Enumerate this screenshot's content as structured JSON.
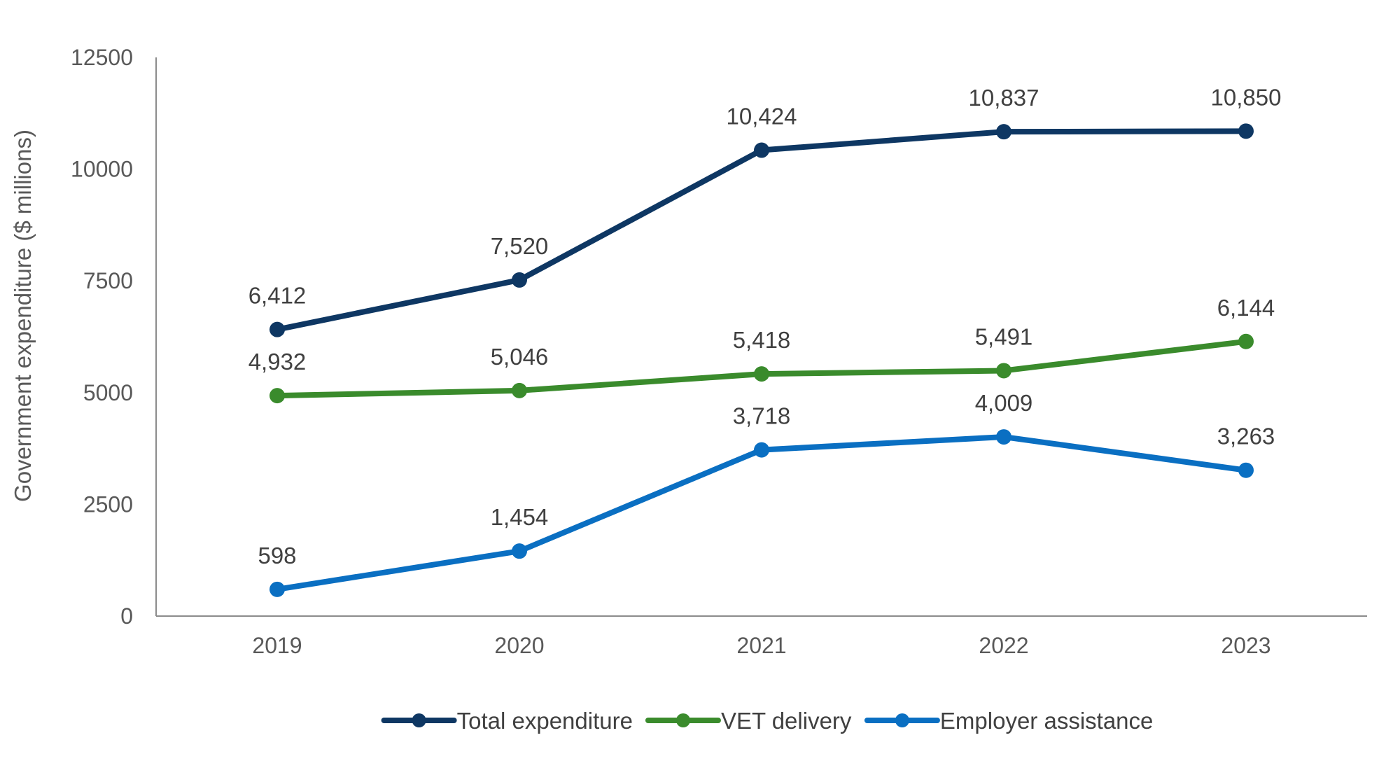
{
  "chart_data": {
    "type": "line",
    "title": "",
    "xlabel": "",
    "ylabel": "Government expenditure ($ millions)",
    "categories": [
      "2019",
      "2020",
      "2021",
      "2022",
      "2023"
    ],
    "ylim": [
      0,
      12500
    ],
    "yticks": [
      0,
      2500,
      5000,
      7500,
      10000,
      12500
    ],
    "ytick_labels": [
      "0",
      "2500",
      "5000",
      "7500",
      "10000",
      "12500"
    ],
    "grid": false,
    "legend_position": "bottom",
    "series": [
      {
        "name": "Total expenditure",
        "color": "#0e3763",
        "values": [
          6412,
          7520,
          10424,
          10837,
          10850
        ],
        "labels": [
          "6,412",
          "7,520",
          "10,424",
          "10,837",
          "10,850"
        ]
      },
      {
        "name": "VET delivery",
        "color": "#3a8b2c",
        "values": [
          4932,
          5046,
          5418,
          5491,
          6144
        ],
        "labels": [
          "4,932",
          "5,046",
          "5,418",
          "5,491",
          "6,144"
        ]
      },
      {
        "name": "Employer assistance",
        "color": "#0a6fc2",
        "values": [
          598,
          1454,
          3718,
          4009,
          3263
        ],
        "labels": [
          "598",
          "1,454",
          "3,718",
          "4,009",
          "3,263"
        ]
      }
    ]
  }
}
